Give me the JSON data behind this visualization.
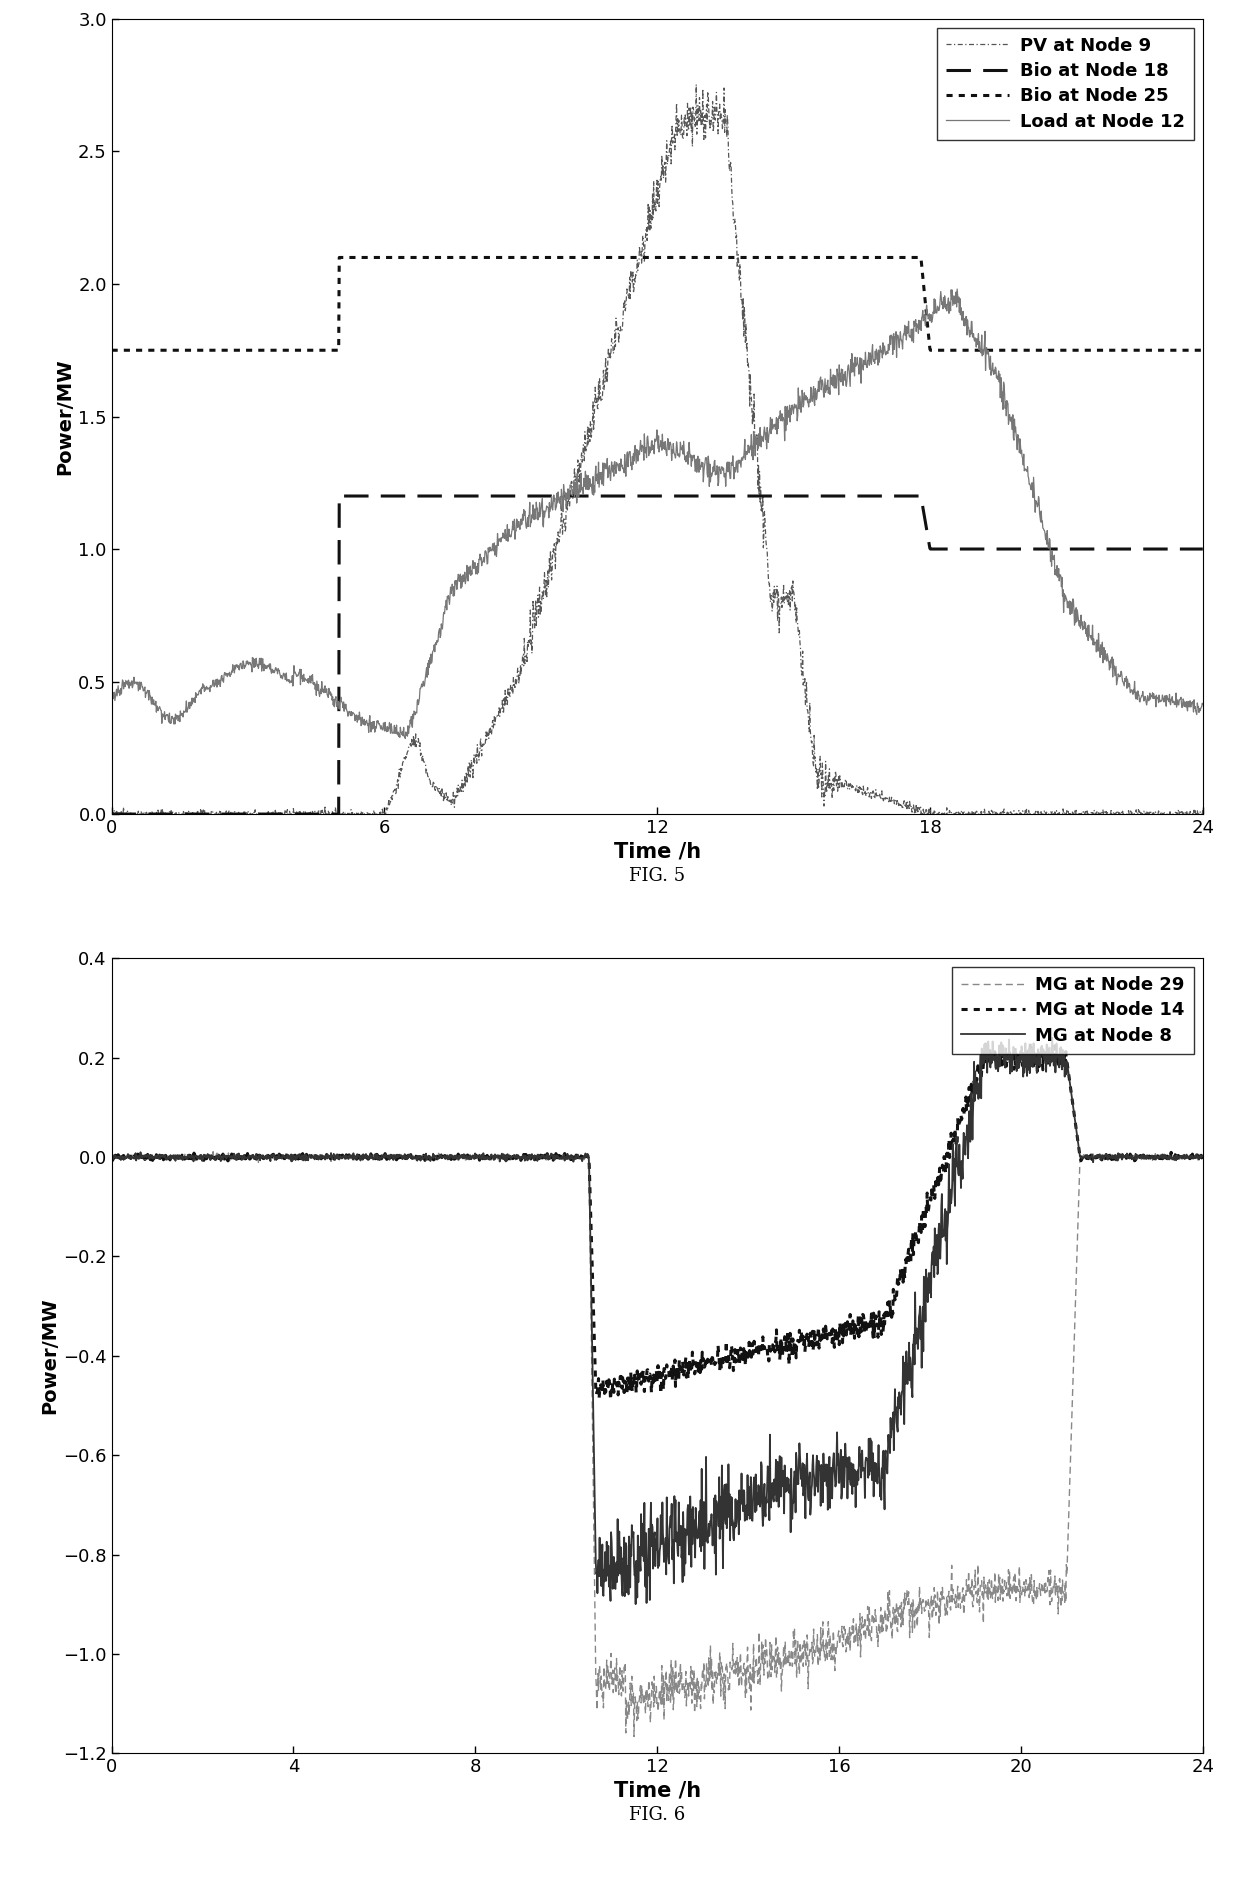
{
  "fig5": {
    "xlabel": "Time /h",
    "ylabel": "Power/MW",
    "xlim": [
      0,
      24
    ],
    "ylim": [
      0,
      3
    ],
    "xticks": [
      0,
      6,
      12,
      18,
      24
    ],
    "yticks": [
      0,
      0.5,
      1.0,
      1.5,
      2.0,
      2.5,
      3.0
    ],
    "caption": "FIG. 5"
  },
  "fig6": {
    "xlabel": "Time /h",
    "ylabel": "Power/MW",
    "xlim": [
      0,
      24
    ],
    "ylim": [
      -1.2,
      0.4
    ],
    "xticks": [
      0,
      4,
      8,
      12,
      16,
      20,
      24
    ],
    "yticks": [
      -1.2,
      -1.0,
      -0.8,
      -0.6,
      -0.4,
      -0.2,
      0.0,
      0.2,
      0.4
    ],
    "caption": "FIG. 6"
  },
  "bg_color": "#ffffff",
  "tick_labelsize": 13,
  "label_fontsize": 15,
  "caption_fontsize": 13
}
